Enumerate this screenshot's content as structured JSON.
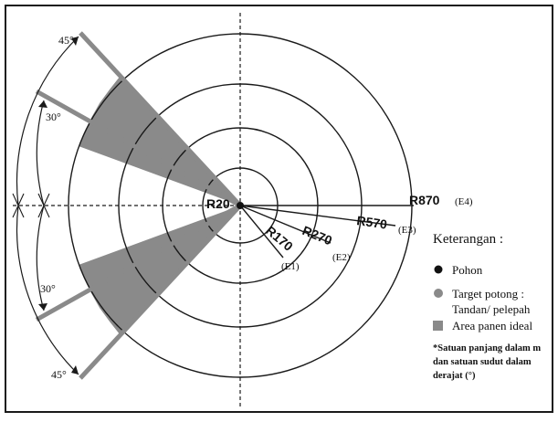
{
  "diagram": {
    "center_label": "R20",
    "radius_labels": [
      {
        "text": "R170",
        "tag": "(E1)"
      },
      {
        "text": "R270",
        "tag": "(E2)"
      },
      {
        "text": "R570",
        "tag": "(E3)"
      },
      {
        "text": "R870",
        "tag": "(E4)"
      }
    ],
    "angle_labels": {
      "upper_outer": "45°",
      "upper_inner": "30°",
      "lower_inner": "30°",
      "lower_outer": "45°"
    },
    "colors": {
      "shaded_area": "#8a8a8a",
      "target_line": "#8a8a8a",
      "line": "#1a1a1a"
    }
  },
  "legend": {
    "title": "Keterangan :",
    "items": [
      {
        "label": "Pohon"
      },
      {
        "label": "Target potong :",
        "label2": "Tandan/ pelepah"
      },
      {
        "label": "Area panen ideal"
      }
    ],
    "note_line1": "*Satuan panjang dalam m",
    "note_line2": "dan satuan sudut dalam",
    "note_line3": "derajat (°)"
  }
}
